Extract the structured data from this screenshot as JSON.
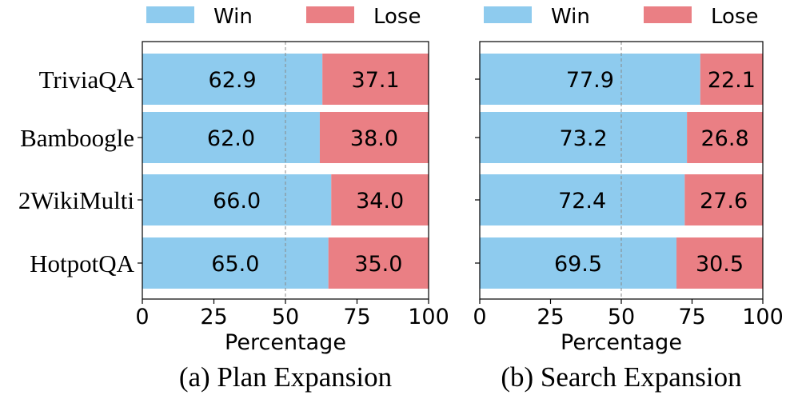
{
  "chart_data": [
    {
      "type": "bar",
      "orientation": "horizontal",
      "stacked": true,
      "title": "(a) Plan Expansion",
      "xlabel": "Percentage",
      "ylabel": "",
      "xlim": [
        0,
        100
      ],
      "xticks": [
        0,
        25,
        50,
        75,
        100
      ],
      "reference_line": 50,
      "legend": {
        "placement": "top",
        "entries": [
          "Win",
          "Lose"
        ]
      },
      "categories": [
        "TriviaQA",
        "Bamboogle",
        "2WikiMulti",
        "HotpotQA"
      ],
      "series": [
        {
          "name": "Win",
          "color": "#8ECBEE",
          "values": [
            62.9,
            62.0,
            66.0,
            65.0
          ]
        },
        {
          "name": "Lose",
          "color": "#EA7F84",
          "values": [
            37.1,
            38.0,
            34.0,
            35.0
          ]
        }
      ],
      "show_category_labels": true
    },
    {
      "type": "bar",
      "orientation": "horizontal",
      "stacked": true,
      "title": "(b) Search Expansion",
      "xlabel": "Percentage",
      "ylabel": "",
      "xlim": [
        0,
        100
      ],
      "xticks": [
        0,
        25,
        50,
        75,
        100
      ],
      "reference_line": 50,
      "legend": {
        "placement": "top",
        "entries": [
          "Win",
          "Lose"
        ]
      },
      "categories": [
        "TriviaQA",
        "Bamboogle",
        "2WikiMulti",
        "HotpotQA"
      ],
      "series": [
        {
          "name": "Win",
          "color": "#8ECBEE",
          "values": [
            77.9,
            73.2,
            72.4,
            69.5
          ]
        },
        {
          "name": "Lose",
          "color": "#EA7F84",
          "values": [
            22.1,
            26.8,
            27.6,
            30.5
          ]
        }
      ],
      "show_category_labels": false
    }
  ]
}
